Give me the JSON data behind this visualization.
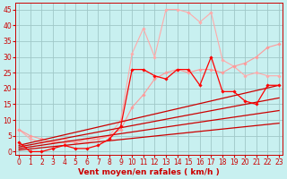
{
  "xlabel": "Vent moyen/en rafales ( km/h )",
  "background_color": "#c8f0f0",
  "grid_color": "#a0c8c8",
  "x_ticks": [
    0,
    1,
    2,
    3,
    4,
    5,
    6,
    7,
    8,
    9,
    10,
    11,
    12,
    13,
    14,
    15,
    16,
    17,
    18,
    19,
    20,
    21,
    22,
    23
  ],
  "y_ticks": [
    0,
    5,
    10,
    15,
    20,
    25,
    30,
    35,
    40,
    45
  ],
  "ylim": [
    -1,
    47
  ],
  "xlim": [
    -0.3,
    23.3
  ],
  "lines": [
    {
      "x": [
        0,
        1,
        2,
        3,
        4,
        5,
        6,
        7,
        8,
        9,
        10,
        11,
        12,
        13,
        14,
        15,
        16,
        17,
        18,
        19,
        20,
        21,
        22,
        23
      ],
      "y": [
        7,
        4,
        3,
        3,
        4,
        3,
        3,
        4,
        5,
        10,
        31,
        39,
        30,
        45,
        45,
        44,
        41,
        44,
        29,
        27,
        24,
        25,
        24,
        24
      ],
      "color": "#ffaaaa",
      "lw": 0.8,
      "marker": "D",
      "ms": 1.8,
      "zorder": 2
    },
    {
      "x": [
        0,
        1,
        2,
        3,
        4,
        5,
        6,
        7,
        8,
        9,
        10,
        11,
        12,
        13,
        14,
        15,
        16,
        17,
        18,
        19,
        20,
        21,
        22,
        23
      ],
      "y": [
        7,
        5,
        4,
        3,
        3,
        3,
        4,
        4,
        5,
        7,
        14,
        18,
        23,
        25,
        26,
        25,
        26,
        26,
        25,
        27,
        28,
        30,
        33,
        34
      ],
      "color": "#ff9999",
      "lw": 0.8,
      "marker": "D",
      "ms": 1.8,
      "zorder": 2
    },
    {
      "x": [
        0,
        1,
        2,
        3,
        4,
        5,
        6,
        7,
        8,
        9,
        10,
        11,
        12,
        13,
        14,
        15,
        16,
        17,
        18,
        19,
        20,
        21,
        22,
        23
      ],
      "y": [
        3,
        0,
        0,
        1,
        2,
        1,
        1,
        2,
        4,
        8,
        26,
        26,
        24,
        23,
        26,
        26,
        21,
        30,
        19,
        19,
        16,
        15,
        21,
        21
      ],
      "color": "#ff0000",
      "lw": 0.9,
      "marker": "D",
      "ms": 1.8,
      "zorder": 3
    },
    {
      "x": [
        0,
        23
      ],
      "y": [
        2,
        21
      ],
      "color": "#cc0000",
      "lw": 0.9,
      "marker": null,
      "ms": 0,
      "zorder": 2
    },
    {
      "x": [
        0,
        23
      ],
      "y": [
        1.5,
        17
      ],
      "color": "#cc0000",
      "lw": 0.9,
      "marker": null,
      "ms": 0,
      "zorder": 2
    },
    {
      "x": [
        0,
        23
      ],
      "y": [
        1,
        13
      ],
      "color": "#cc0000",
      "lw": 0.9,
      "marker": null,
      "ms": 0,
      "zorder": 2
    },
    {
      "x": [
        0,
        23
      ],
      "y": [
        0.5,
        9
      ],
      "color": "#cc0000",
      "lw": 0.9,
      "marker": null,
      "ms": 0,
      "zorder": 2
    }
  ],
  "tick_fontsize": 5.5,
  "xlabel_fontsize": 6.5,
  "tick_color": "#cc0000",
  "spine_color": "#cc0000"
}
